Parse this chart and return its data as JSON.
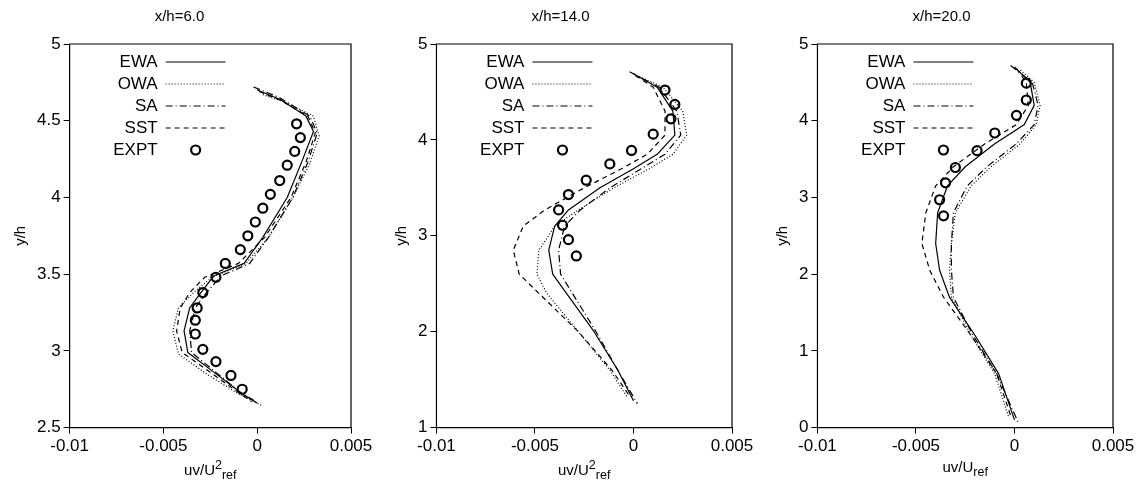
{
  "chart_data": [
    {
      "type": "line",
      "title": "x/h=6.0",
      "xlabel": "uv/U$^{2}$$_{ref}$",
      "ylabel": "y/h",
      "xlim": [
        -0.01,
        0.005
      ],
      "xticks": [
        -0.01,
        -0.005,
        0,
        0.005
      ],
      "ylim": [
        2.5,
        5
      ],
      "yticks": [
        2.5,
        3,
        3.5,
        4,
        4.5,
        5
      ],
      "legend": "top left",
      "grid": false,
      "series": [
        {
          "name": "EWA",
          "color": "#000000",
          "line_style": "solid",
          "x": [
            0,
            0.0012,
            0.0026,
            0.003,
            0.0024,
            0.0016,
            0.0003,
            -0.0007,
            -0.0023,
            -0.003,
            -0.0036,
            -0.0039,
            -0.0037,
            -0.0023,
            -0.0008,
            0
          ],
          "values": [
            4.7,
            4.64,
            4.53,
            4.43,
            4.24,
            4.0,
            3.74,
            3.57,
            3.49,
            3.38,
            3.28,
            3.13,
            2.99,
            2.86,
            2.72,
            2.66
          ]
        },
        {
          "name": "OWA",
          "color": "#000000",
          "line_style": "dotted",
          "x": [
            0.0003,
            0.0015,
            0.003,
            0.0033,
            0.0028,
            0.0019,
            0.0006,
            -0.0006,
            -0.0024,
            -0.0034,
            -0.0042,
            -0.0045,
            -0.0042,
            -0.0027,
            -0.001,
            0.0003
          ],
          "values": [
            4.67,
            4.62,
            4.53,
            4.4,
            4.22,
            4.0,
            3.74,
            3.57,
            3.48,
            3.38,
            3.28,
            3.13,
            2.98,
            2.85,
            2.72,
            2.64
          ]
        },
        {
          "name": "SA",
          "color": "#000000",
          "line_style": "dashdot",
          "x": [
            -0.0002,
            0.0012,
            0.0028,
            0.0032,
            0.0027,
            0.0019,
            0.0006,
            -0.0004,
            -0.0019,
            -0.0027,
            -0.0033,
            -0.0036,
            -0.0035,
            -0.0022,
            -0.0008,
            -0.0002
          ],
          "values": [
            4.72,
            4.65,
            4.53,
            4.42,
            4.23,
            4.0,
            3.74,
            3.57,
            3.49,
            3.38,
            3.28,
            3.13,
            2.99,
            2.86,
            2.72,
            2.68
          ]
        },
        {
          "name": "SST",
          "color": "#000000",
          "line_style": "dashed",
          "x": [
            0.0001,
            0.0013,
            0.0027,
            0.0031,
            0.0026,
            0.0018,
            0.0004,
            -0.001,
            -0.0028,
            -0.0036,
            -0.0041,
            -0.0043,
            -0.004,
            -0.0025,
            -0.0009,
            -0.0003
          ],
          "values": [
            4.69,
            4.63,
            4.53,
            4.42,
            4.23,
            4.0,
            3.74,
            3.57,
            3.48,
            3.38,
            3.28,
            3.13,
            2.99,
            2.86,
            2.72,
            2.67
          ]
        },
        {
          "name": "EXPT",
          "type": "scatter",
          "marker": "circle",
          "color": "#000000",
          "x": [
            0.0021,
            0.0023,
            0.002,
            0.0016,
            0.0012,
            0.0007,
            0.0003,
            -0.0001,
            -0.0005,
            -0.0009,
            -0.0017,
            -0.0022,
            -0.0029,
            -0.0032,
            -0.0033,
            -0.0033,
            -0.0029,
            -0.0022,
            -0.0014,
            -0.0008
          ],
          "values": [
            4.48,
            4.39,
            4.3,
            4.21,
            4.11,
            4.02,
            3.93,
            3.84,
            3.75,
            3.66,
            3.57,
            3.48,
            3.38,
            3.28,
            3.2,
            3.11,
            3.01,
            2.93,
            2.84,
            2.75
          ]
        }
      ]
    },
    {
      "type": "line",
      "title": "x/h=14.0",
      "xlabel": "uv/U$^{2}$$_{ref}$",
      "ylabel": "y/h",
      "xlim": [
        -0.01,
        0.005
      ],
      "xticks": [
        -0.01,
        -0.005,
        0,
        0.005
      ],
      "ylim": [
        1,
        5
      ],
      "yticks": [
        1,
        2,
        3,
        4,
        5
      ],
      "legend": "top left",
      "grid": false,
      "series": [
        {
          "name": "EWA",
          "color": "#000000",
          "line_style": "solid",
          "x": [
            0,
            0.0012,
            0.002,
            0.0021,
            0.0012,
            0,
            -0.0017,
            -0.0033,
            -0.004,
            -0.0043,
            -0.0041,
            -0.0034,
            -0.002,
            -0.0008,
            0
          ],
          "values": [
            4.69,
            4.55,
            4.3,
            4.05,
            3.85,
            3.7,
            3.5,
            3.27,
            3.1,
            2.85,
            2.6,
            2.4,
            2.0,
            1.6,
            1.28
          ]
        },
        {
          "name": "OWA",
          "color": "#000000",
          "line_style": "dotted",
          "x": [
            0.0003,
            0.0015,
            0.0025,
            0.0027,
            0.002,
            0.0008,
            -0.001,
            -0.0028,
            -0.004,
            -0.0048,
            -0.0049,
            -0.0044,
            -0.0028,
            -0.0012,
            -0.0003
          ],
          "values": [
            4.66,
            4.55,
            4.3,
            4.05,
            3.85,
            3.7,
            3.5,
            3.27,
            3.1,
            2.85,
            2.6,
            2.4,
            2.0,
            1.6,
            1.31
          ]
        },
        {
          "name": "SA",
          "color": "#000000",
          "line_style": "dashdot",
          "x": [
            -0.0002,
            0.0013,
            0.0022,
            0.0024,
            0.0016,
            0.0004,
            -0.0012,
            -0.0027,
            -0.0035,
            -0.0038,
            -0.0037,
            -0.0031,
            -0.0019,
            -0.0008,
            0.0002
          ],
          "values": [
            4.71,
            4.55,
            4.3,
            4.05,
            3.85,
            3.7,
            3.5,
            3.27,
            3.1,
            2.85,
            2.6,
            2.4,
            2.0,
            1.6,
            1.25
          ]
        },
        {
          "name": "SST",
          "color": "#000000",
          "line_style": "dashed",
          "x": [
            0.0001,
            0.001,
            0.0016,
            0.0016,
            0.0007,
            -0.0006,
            -0.0025,
            -0.0045,
            -0.0056,
            -0.0061,
            -0.0058,
            -0.0048,
            -0.0028,
            -0.0011,
            -0.0002
          ],
          "values": [
            4.67,
            4.55,
            4.3,
            4.05,
            3.85,
            3.7,
            3.5,
            3.27,
            3.1,
            2.85,
            2.6,
            2.4,
            2.0,
            1.6,
            1.33
          ]
        },
        {
          "name": "EXPT",
          "type": "scatter",
          "marker": "circle",
          "color": "#000000",
          "x": [
            0.0016,
            0.0021,
            0.0019,
            0.001,
            -0.0001,
            -0.0012,
            -0.0024,
            -0.0033,
            -0.0038,
            -0.0036,
            -0.0033,
            -0.0029
          ],
          "values": [
            4.52,
            4.37,
            4.22,
            4.06,
            3.89,
            3.75,
            3.58,
            3.43,
            3.27,
            3.11,
            2.96,
            2.79
          ]
        }
      ]
    },
    {
      "type": "line",
      "title": "x/h=20.0",
      "xlabel": "uv/U$_{ref}$",
      "ylabel": "y/h",
      "xlim": [
        -0.01,
        0.005
      ],
      "xticks": [
        -0.01,
        -0.005,
        0,
        0.005
      ],
      "ylim": [
        0,
        5
      ],
      "yticks": [
        0,
        1,
        2,
        3,
        4,
        5
      ],
      "legend": "top left",
      "grid": false,
      "series": [
        {
          "name": "EWA",
          "color": "#000000",
          "line_style": "solid",
          "x": [
            0,
            0.0008,
            0.001,
            0.0005,
            -0.001,
            -0.0025,
            -0.0034,
            -0.0039,
            -0.004,
            -0.0038,
            -0.0033,
            -0.002,
            -0.0008,
            0
          ],
          "values": [
            4.7,
            4.5,
            4.2,
            3.95,
            3.7,
            3.4,
            3.15,
            2.8,
            2.4,
            2.05,
            1.7,
            1.2,
            0.7,
            0.1
          ]
        },
        {
          "name": "OWA",
          "color": "#000000",
          "line_style": "dotted",
          "x": [
            0.0003,
            0.001,
            0.0013,
            0.0011,
            0.0003,
            -0.0012,
            -0.0022,
            -0.003,
            -0.0032,
            -0.0033,
            -0.0032,
            -0.0022,
            -0.001,
            -0.0003
          ],
          "values": [
            4.66,
            4.5,
            4.2,
            3.95,
            3.7,
            3.4,
            3.15,
            2.8,
            2.4,
            2.05,
            1.7,
            1.2,
            0.7,
            0.14
          ]
        },
        {
          "name": "SA",
          "color": "#000000",
          "line_style": "dashdot",
          "x": [
            -0.0002,
            0.0009,
            0.0012,
            0.001,
            0.0001,
            -0.0014,
            -0.0024,
            -0.0031,
            -0.0032,
            -0.0032,
            -0.0031,
            -0.0021,
            -0.0009,
            0.0002
          ],
          "values": [
            4.72,
            4.5,
            4.2,
            3.95,
            3.7,
            3.4,
            3.15,
            2.8,
            2.4,
            2.05,
            1.7,
            1.2,
            0.7,
            0.06
          ]
        },
        {
          "name": "SST",
          "color": "#000000",
          "line_style": "dashed",
          "x": [
            0.0001,
            0.0006,
            0.0007,
            0.0001,
            -0.0015,
            -0.0031,
            -0.004,
            -0.0045,
            -0.0047,
            -0.0043,
            -0.0036,
            -0.0022,
            -0.0009,
            -0.0002
          ],
          "values": [
            4.68,
            4.5,
            4.2,
            3.95,
            3.7,
            3.4,
            3.15,
            2.8,
            2.4,
            2.05,
            1.7,
            1.2,
            0.7,
            0.16
          ]
        },
        {
          "name": "EXPT",
          "type": "scatter",
          "marker": "circle",
          "color": "#000000",
          "x": [
            0.0006,
            0.0006,
            0.0001,
            -0.001,
            -0.0019,
            -0.003,
            -0.0035,
            -0.0038,
            -0.0036
          ],
          "values": [
            4.49,
            4.27,
            4.07,
            3.84,
            3.61,
            3.39,
            3.19,
            2.97,
            2.76
          ]
        }
      ]
    }
  ]
}
